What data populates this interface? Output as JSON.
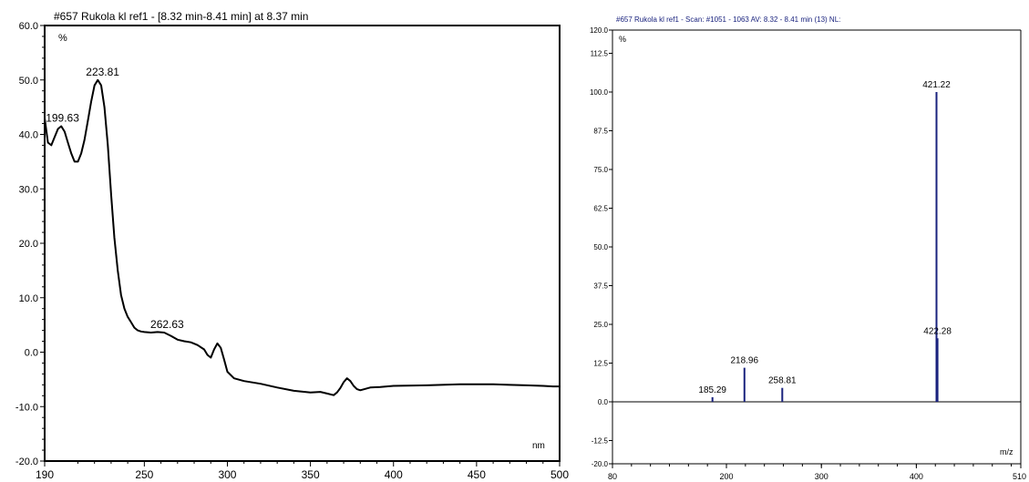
{
  "chart_data": [
    {
      "type": "line",
      "title": "#657 Rukola kl ref1  - [8.32 min-8.41 min] at 8.37 min",
      "xlabel": "nm",
      "ylabel": "%",
      "xlim": [
        190,
        500
      ],
      "ylim": [
        -20,
        60
      ],
      "x_ticks": [
        "190",
        "250",
        "300",
        "350",
        "400",
        "450",
        "500"
      ],
      "y_ticks": [
        "60.0",
        "50.0",
        "40.0",
        "30.0",
        "20.0",
        "10.0",
        "0.0",
        "-10.0",
        "-20.0"
      ],
      "series": [
        {
          "x": [
            190,
            192,
            194,
            196,
            198,
            200,
            202,
            204,
            206,
            208,
            210,
            212,
            214,
            216,
            218,
            220,
            222,
            224,
            226,
            228,
            230,
            232,
            234,
            236,
            238,
            240,
            242,
            244,
            246,
            248,
            250,
            254,
            258,
            262,
            266,
            270,
            274,
            278,
            282,
            286,
            288,
            290,
            292,
            294,
            296,
            298,
            300,
            304,
            310,
            320,
            330,
            340,
            350,
            356,
            360,
            364,
            366,
            368,
            370,
            372,
            374,
            376,
            378,
            380,
            386,
            392,
            400,
            420,
            440,
            450,
            460,
            470,
            480,
            490,
            496,
            500
          ],
          "y": [
            43,
            38.5,
            38,
            39.5,
            41,
            41.5,
            40.5,
            38.5,
            36.5,
            35,
            35,
            36.5,
            39,
            42.5,
            46,
            49,
            50,
            49,
            45,
            38,
            29,
            21,
            15,
            10.5,
            8,
            6.5,
            5.5,
            4.5,
            4,
            3.8,
            3.7,
            3.6,
            3.7,
            3.6,
            3,
            2.3,
            2,
            1.8,
            1.3,
            0.5,
            -0.5,
            -1,
            0.5,
            1.6,
            0.8,
            -1.3,
            -3.6,
            -4.8,
            -5.3,
            -5.8,
            -6.5,
            -7.1,
            -7.4,
            -7.3,
            -7.6,
            -7.9,
            -7.4,
            -6.6,
            -5.5,
            -4.8,
            -5.3,
            -6.2,
            -6.8,
            -7,
            -6.5,
            -6.4,
            -6.2,
            -6.1,
            -5.9,
            -5.9,
            -5.9,
            -6,
            -6.1,
            -6.2,
            -6.3,
            -6.3
          ]
        }
      ],
      "annotations": [
        {
          "x": 199.63,
          "y": 41.5,
          "label": "199.63"
        },
        {
          "x": 223.81,
          "y": 50.0,
          "label": "223.81"
        },
        {
          "x": 262.63,
          "y": 3.6,
          "label": "262.63"
        }
      ]
    },
    {
      "type": "bar",
      "title": "#657 Rukola kl ref1  - Scan: #1051 - 1063  AV: 8.32 - 8.41 min (13) NL:",
      "xlabel": "m/z",
      "ylabel": "%",
      "xlim": [
        80,
        510
      ],
      "ylim": [
        -20,
        120
      ],
      "x_ticks": [
        "80",
        "200",
        "300",
        "400",
        "510"
      ],
      "y_ticks": [
        "120.0",
        "112.5",
        "100.0",
        "87.5",
        "75.0",
        "62.5",
        "50.0",
        "37.5",
        "25.0",
        "12.5",
        "0.0",
        "-12.5",
        "-20.0"
      ],
      "peaks": [
        {
          "mz": 185.29,
          "intensity": 1.5,
          "label": "185.29"
        },
        {
          "mz": 218.96,
          "intensity": 11,
          "label": "218.96"
        },
        {
          "mz": 258.81,
          "intensity": 4.5,
          "label": "258.81"
        },
        {
          "mz": 421.22,
          "intensity": 100,
          "label": "421.22"
        },
        {
          "mz": 422.28,
          "intensity": 20.5,
          "label": "422.28"
        }
      ]
    }
  ]
}
